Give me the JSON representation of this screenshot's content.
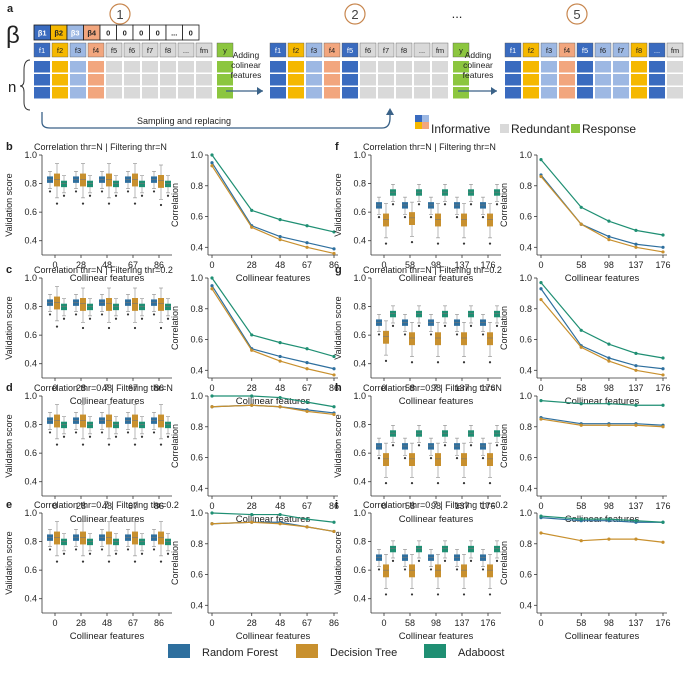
{
  "top": {
    "label": "a",
    "beta_symbol": "β",
    "steps": [
      "1",
      "2",
      "...",
      "5"
    ],
    "beta_cells": [
      "β1",
      "β2",
      "β3",
      "β4",
      "0",
      "0",
      "0",
      "0",
      "...",
      "0"
    ],
    "block1_features": [
      "f1",
      "f2",
      "f3",
      "f4",
      "f5",
      "f6",
      "f7",
      "f8",
      "...",
      "fm",
      "y"
    ],
    "block2_features": [
      "f1",
      "f2",
      "f3",
      "f4",
      "f5",
      "f6",
      "f7",
      "f8",
      "...",
      "fm",
      "y"
    ],
    "block3_features": [
      "f1",
      "f2",
      "f3",
      "f4",
      "f5",
      "f6",
      "f7",
      "f8",
      "...",
      "fm",
      "y"
    ],
    "n_label": "n",
    "arrow1_text": "Adding colinear features",
    "arrow2_text": "Adding colinear features",
    "sampling_text": "Sampling and replacing",
    "legend": {
      "informative": "Informative",
      "redundant": "Redundant",
      "response": "Response"
    },
    "colors": {
      "blue": "#3a6bbf",
      "lightblue": "#9db8e3",
      "yellow": "#f5b800",
      "orange": "#f2a67e",
      "grey": "#d9d9d9",
      "green": "#8cc63f",
      "dark": "#1a1a1a"
    }
  },
  "bottom_legend": [
    {
      "name": "Random Forest",
      "color": "#2e6f9e"
    },
    {
      "name": "Decision Tree",
      "color": "#c8902e"
    },
    {
      "name": "Adaboost",
      "color": "#1f8f73"
    }
  ],
  "chart_data": [
    {
      "label": "b",
      "title": "Correlation thr=N | Filtering thr=N",
      "type": "box+line",
      "categories": [
        "0",
        "28",
        "48",
        "67",
        "86"
      ],
      "xlabel": "Collinear features",
      "box_ylabel": "Validation score",
      "line_ylabel": "Correlation",
      "box_ylim": [
        0.3,
        1.0
      ],
      "box_yticks": [
        0.4,
        0.6,
        0.8,
        1.0
      ],
      "box_medians": {
        "Random Forest": [
          0.83,
          0.83,
          0.83,
          0.83,
          0.83
        ],
        "Decision Tree": [
          0.83,
          0.83,
          0.83,
          0.83,
          0.82
        ],
        "Adaboost": [
          0.8,
          0.8,
          0.8,
          0.8,
          0.8
        ]
      },
      "line_x": [
        0,
        28,
        48,
        67,
        86
      ],
      "line_ylim": [
        0.35,
        1.0
      ],
      "line_yticks": [
        0.4,
        0.6,
        0.8,
        1.0
      ],
      "line_series": {
        "Random Forest": [
          0.95,
          0.54,
          0.47,
          0.43,
          0.39
        ],
        "Decision Tree": [
          0.93,
          0.53,
          0.45,
          0.4,
          0.36
        ],
        "Adaboost": [
          1.0,
          0.64,
          0.58,
          0.54,
          0.5
        ]
      }
    },
    {
      "label": "c",
      "title": "Correlation thr=N | Filtering thr=0.2",
      "type": "box+line",
      "categories": [
        "0",
        "28",
        "48",
        "67",
        "86"
      ],
      "xlabel": "Collinear features",
      "box_ylabel": "Validation score",
      "line_ylabel": "Correlation",
      "box_ylim": [
        0.3,
        1.0
      ],
      "box_yticks": [
        0.4,
        0.6,
        0.8,
        1.0
      ],
      "box_medians": {
        "Random Forest": [
          0.83,
          0.83,
          0.83,
          0.83,
          0.83
        ],
        "Decision Tree": [
          0.83,
          0.82,
          0.82,
          0.82,
          0.82
        ],
        "Adaboost": [
          0.8,
          0.8,
          0.8,
          0.8,
          0.8
        ]
      },
      "line_x": [
        0,
        28,
        48,
        67,
        86
      ],
      "line_ylim": [
        0.35,
        1.0
      ],
      "line_yticks": [
        0.4,
        0.6,
        0.8,
        1.0
      ],
      "line_series": {
        "Random Forest": [
          0.95,
          0.54,
          0.49,
          0.45,
          0.41
        ],
        "Decision Tree": [
          0.93,
          0.53,
          0.46,
          0.41,
          0.37
        ],
        "Adaboost": [
          1.0,
          0.63,
          0.58,
          0.54,
          0.49
        ]
      }
    },
    {
      "label": "d",
      "title": "Correlation thr=0.7 | Filtering thr=N",
      "type": "box+line",
      "categories": [
        "0",
        "28",
        "48",
        "67",
        "86"
      ],
      "xlabel": "Collinear features",
      "box_ylabel": "Validation score",
      "line_ylabel": "Correlation",
      "box_ylim": [
        0.3,
        1.0
      ],
      "box_yticks": [
        0.4,
        0.6,
        0.8,
        1.0
      ],
      "box_medians": {
        "Random Forest": [
          0.83,
          0.83,
          0.83,
          0.83,
          0.83
        ],
        "Decision Tree": [
          0.83,
          0.83,
          0.83,
          0.83,
          0.83
        ],
        "Adaboost": [
          0.8,
          0.8,
          0.8,
          0.8,
          0.8
        ]
      },
      "line_x": [
        0,
        28,
        48,
        67,
        86
      ],
      "line_ylim": [
        0.35,
        1.0
      ],
      "line_yticks": [
        0.4,
        0.6,
        0.8,
        1.0
      ],
      "line_series": {
        "Random Forest": [
          0.93,
          0.94,
          0.93,
          0.91,
          0.89
        ],
        "Decision Tree": [
          0.93,
          0.94,
          0.93,
          0.9,
          0.88
        ],
        "Adaboost": [
          1.0,
          1.0,
          0.99,
          0.96,
          0.93
        ]
      }
    },
    {
      "label": "e",
      "title": "Correlation thr=0.7 | Filtering thr=0.2",
      "type": "box+line",
      "categories": [
        "0",
        "28",
        "48",
        "67",
        "86"
      ],
      "xlabel": "Collinear features",
      "box_ylabel": "Validation score",
      "line_ylabel": "Correlation",
      "box_ylim": [
        0.3,
        1.0
      ],
      "box_yticks": [
        0.4,
        0.6,
        0.8,
        1.0
      ],
      "box_medians": {
        "Random Forest": [
          0.83,
          0.83,
          0.83,
          0.83,
          0.83
        ],
        "Decision Tree": [
          0.83,
          0.83,
          0.83,
          0.83,
          0.83
        ],
        "Adaboost": [
          0.8,
          0.8,
          0.8,
          0.8,
          0.8
        ]
      },
      "line_x": [
        0,
        28,
        48,
        67,
        86
      ],
      "line_ylim": [
        0.35,
        1.0
      ],
      "line_yticks": [
        0.4,
        0.6,
        0.8,
        1.0
      ],
      "line_series": {
        "Random Forest": [
          0.93,
          0.94,
          0.94,
          0.91,
          0.88
        ],
        "Decision Tree": [
          0.93,
          0.94,
          0.93,
          0.91,
          0.88
        ],
        "Adaboost": [
          1.0,
          0.99,
          0.99,
          0.96,
          0.94
        ]
      }
    },
    {
      "label": "f",
      "title": "Correlation thr=N | Filtering thr=N",
      "type": "box+line",
      "categories": [
        "0",
        "58",
        "98",
        "137",
        "176"
      ],
      "xlabel": "Collinear features",
      "box_ylabel": "Validation score",
      "line_ylabel": "Correlation",
      "box_ylim": [
        0.3,
        1.0
      ],
      "box_yticks": [
        0.4,
        0.6,
        0.8,
        1.0
      ],
      "box_medians": {
        "Random Forest": [
          0.65,
          0.65,
          0.65,
          0.65,
          0.65
        ],
        "Decision Tree": [
          0.55,
          0.56,
          0.55,
          0.55,
          0.55
        ],
        "Adaboost": [
          0.74,
          0.74,
          0.74,
          0.74,
          0.74
        ]
      },
      "line_x": [
        0,
        58,
        98,
        137,
        176
      ],
      "line_ylim": [
        0.35,
        1.0
      ],
      "line_yticks": [
        0.4,
        0.6,
        0.8,
        1.0
      ],
      "line_series": {
        "Random Forest": [
          0.87,
          0.55,
          0.47,
          0.42,
          0.4
        ],
        "Decision Tree": [
          0.86,
          0.55,
          0.45,
          0.4,
          0.37
        ],
        "Adaboost": [
          0.97,
          0.66,
          0.57,
          0.51,
          0.48
        ]
      }
    },
    {
      "label": "g",
      "title": "Correlation thr=N | Filtering thr=0.2",
      "type": "box+line",
      "categories": [
        "0",
        "58",
        "98",
        "137",
        "176"
      ],
      "xlabel": "Collinear features",
      "box_ylabel": "Validation score",
      "line_ylabel": "Correlation",
      "box_ylim": [
        0.3,
        1.0
      ],
      "box_yticks": [
        0.4,
        0.6,
        0.8,
        1.0
      ],
      "box_medians": {
        "Random Forest": [
          0.69,
          0.69,
          0.69,
          0.69,
          0.69
        ],
        "Decision Tree": [
          0.59,
          0.58,
          0.58,
          0.58,
          0.58
        ],
        "Adaboost": [
          0.75,
          0.75,
          0.75,
          0.75,
          0.75
        ]
      },
      "line_x": [
        0,
        58,
        98,
        137,
        176
      ],
      "line_ylim": [
        0.35,
        1.0
      ],
      "line_yticks": [
        0.4,
        0.6,
        0.8,
        1.0
      ],
      "line_series": {
        "Random Forest": [
          0.93,
          0.56,
          0.48,
          0.43,
          0.41
        ],
        "Decision Tree": [
          0.86,
          0.55,
          0.46,
          0.4,
          0.37
        ],
        "Adaboost": [
          0.97,
          0.66,
          0.57,
          0.51,
          0.48
        ]
      }
    },
    {
      "label": "h",
      "title": "Correlation thr=0.7 | Filtering thr=N",
      "type": "box+line",
      "categories": [
        "0",
        "58",
        "98",
        "137",
        "176"
      ],
      "xlabel": "Collinear features",
      "box_ylabel": "Validation score",
      "line_ylabel": "Correlation",
      "box_ylim": [
        0.3,
        1.0
      ],
      "box_yticks": [
        0.4,
        0.6,
        0.8,
        1.0
      ],
      "box_medians": {
        "Random Forest": [
          0.65,
          0.65,
          0.65,
          0.65,
          0.65
        ],
        "Decision Tree": [
          0.56,
          0.56,
          0.56,
          0.56,
          0.56
        ],
        "Adaboost": [
          0.74,
          0.74,
          0.74,
          0.74,
          0.74
        ]
      },
      "line_x": [
        0,
        58,
        98,
        137,
        176
      ],
      "line_ylim": [
        0.35,
        1.0
      ],
      "line_yticks": [
        0.4,
        0.6,
        0.8,
        1.0
      ],
      "line_series": {
        "Random Forest": [
          0.86,
          0.82,
          0.82,
          0.82,
          0.81
        ],
        "Decision Tree": [
          0.85,
          0.81,
          0.81,
          0.81,
          0.8
        ],
        "Adaboost": [
          0.97,
          0.95,
          0.95,
          0.94,
          0.94
        ]
      }
    },
    {
      "label": "i",
      "title": "Correlation thr=0.7 | Filtering thr=0.2",
      "type": "box+line",
      "categories": [
        "0",
        "58",
        "98",
        "137",
        "176"
      ],
      "xlabel": "Collinear features",
      "box_ylabel": "Validation score",
      "line_ylabel": "Correlation",
      "box_ylim": [
        0.3,
        1.0
      ],
      "box_yticks": [
        0.4,
        0.6,
        0.8,
        1.0
      ],
      "box_medians": {
        "Random Forest": [
          0.69,
          0.69,
          0.69,
          0.69,
          0.69
        ],
        "Decision Tree": [
          0.6,
          0.6,
          0.6,
          0.6,
          0.6
        ],
        "Adaboost": [
          0.75,
          0.75,
          0.75,
          0.75,
          0.75
        ]
      },
      "line_x": [
        0,
        58,
        98,
        137,
        176
      ],
      "line_ylim": [
        0.35,
        1.0
      ],
      "line_yticks": [
        0.4,
        0.6,
        0.8,
        1.0
      ],
      "line_series": {
        "Random Forest": [
          0.97,
          0.95,
          0.95,
          0.94,
          0.94
        ],
        "Decision Tree": [
          0.87,
          0.82,
          0.83,
          0.83,
          0.81
        ],
        "Adaboost": [
          0.98,
          0.96,
          0.96,
          0.95,
          0.94
        ]
      }
    }
  ]
}
